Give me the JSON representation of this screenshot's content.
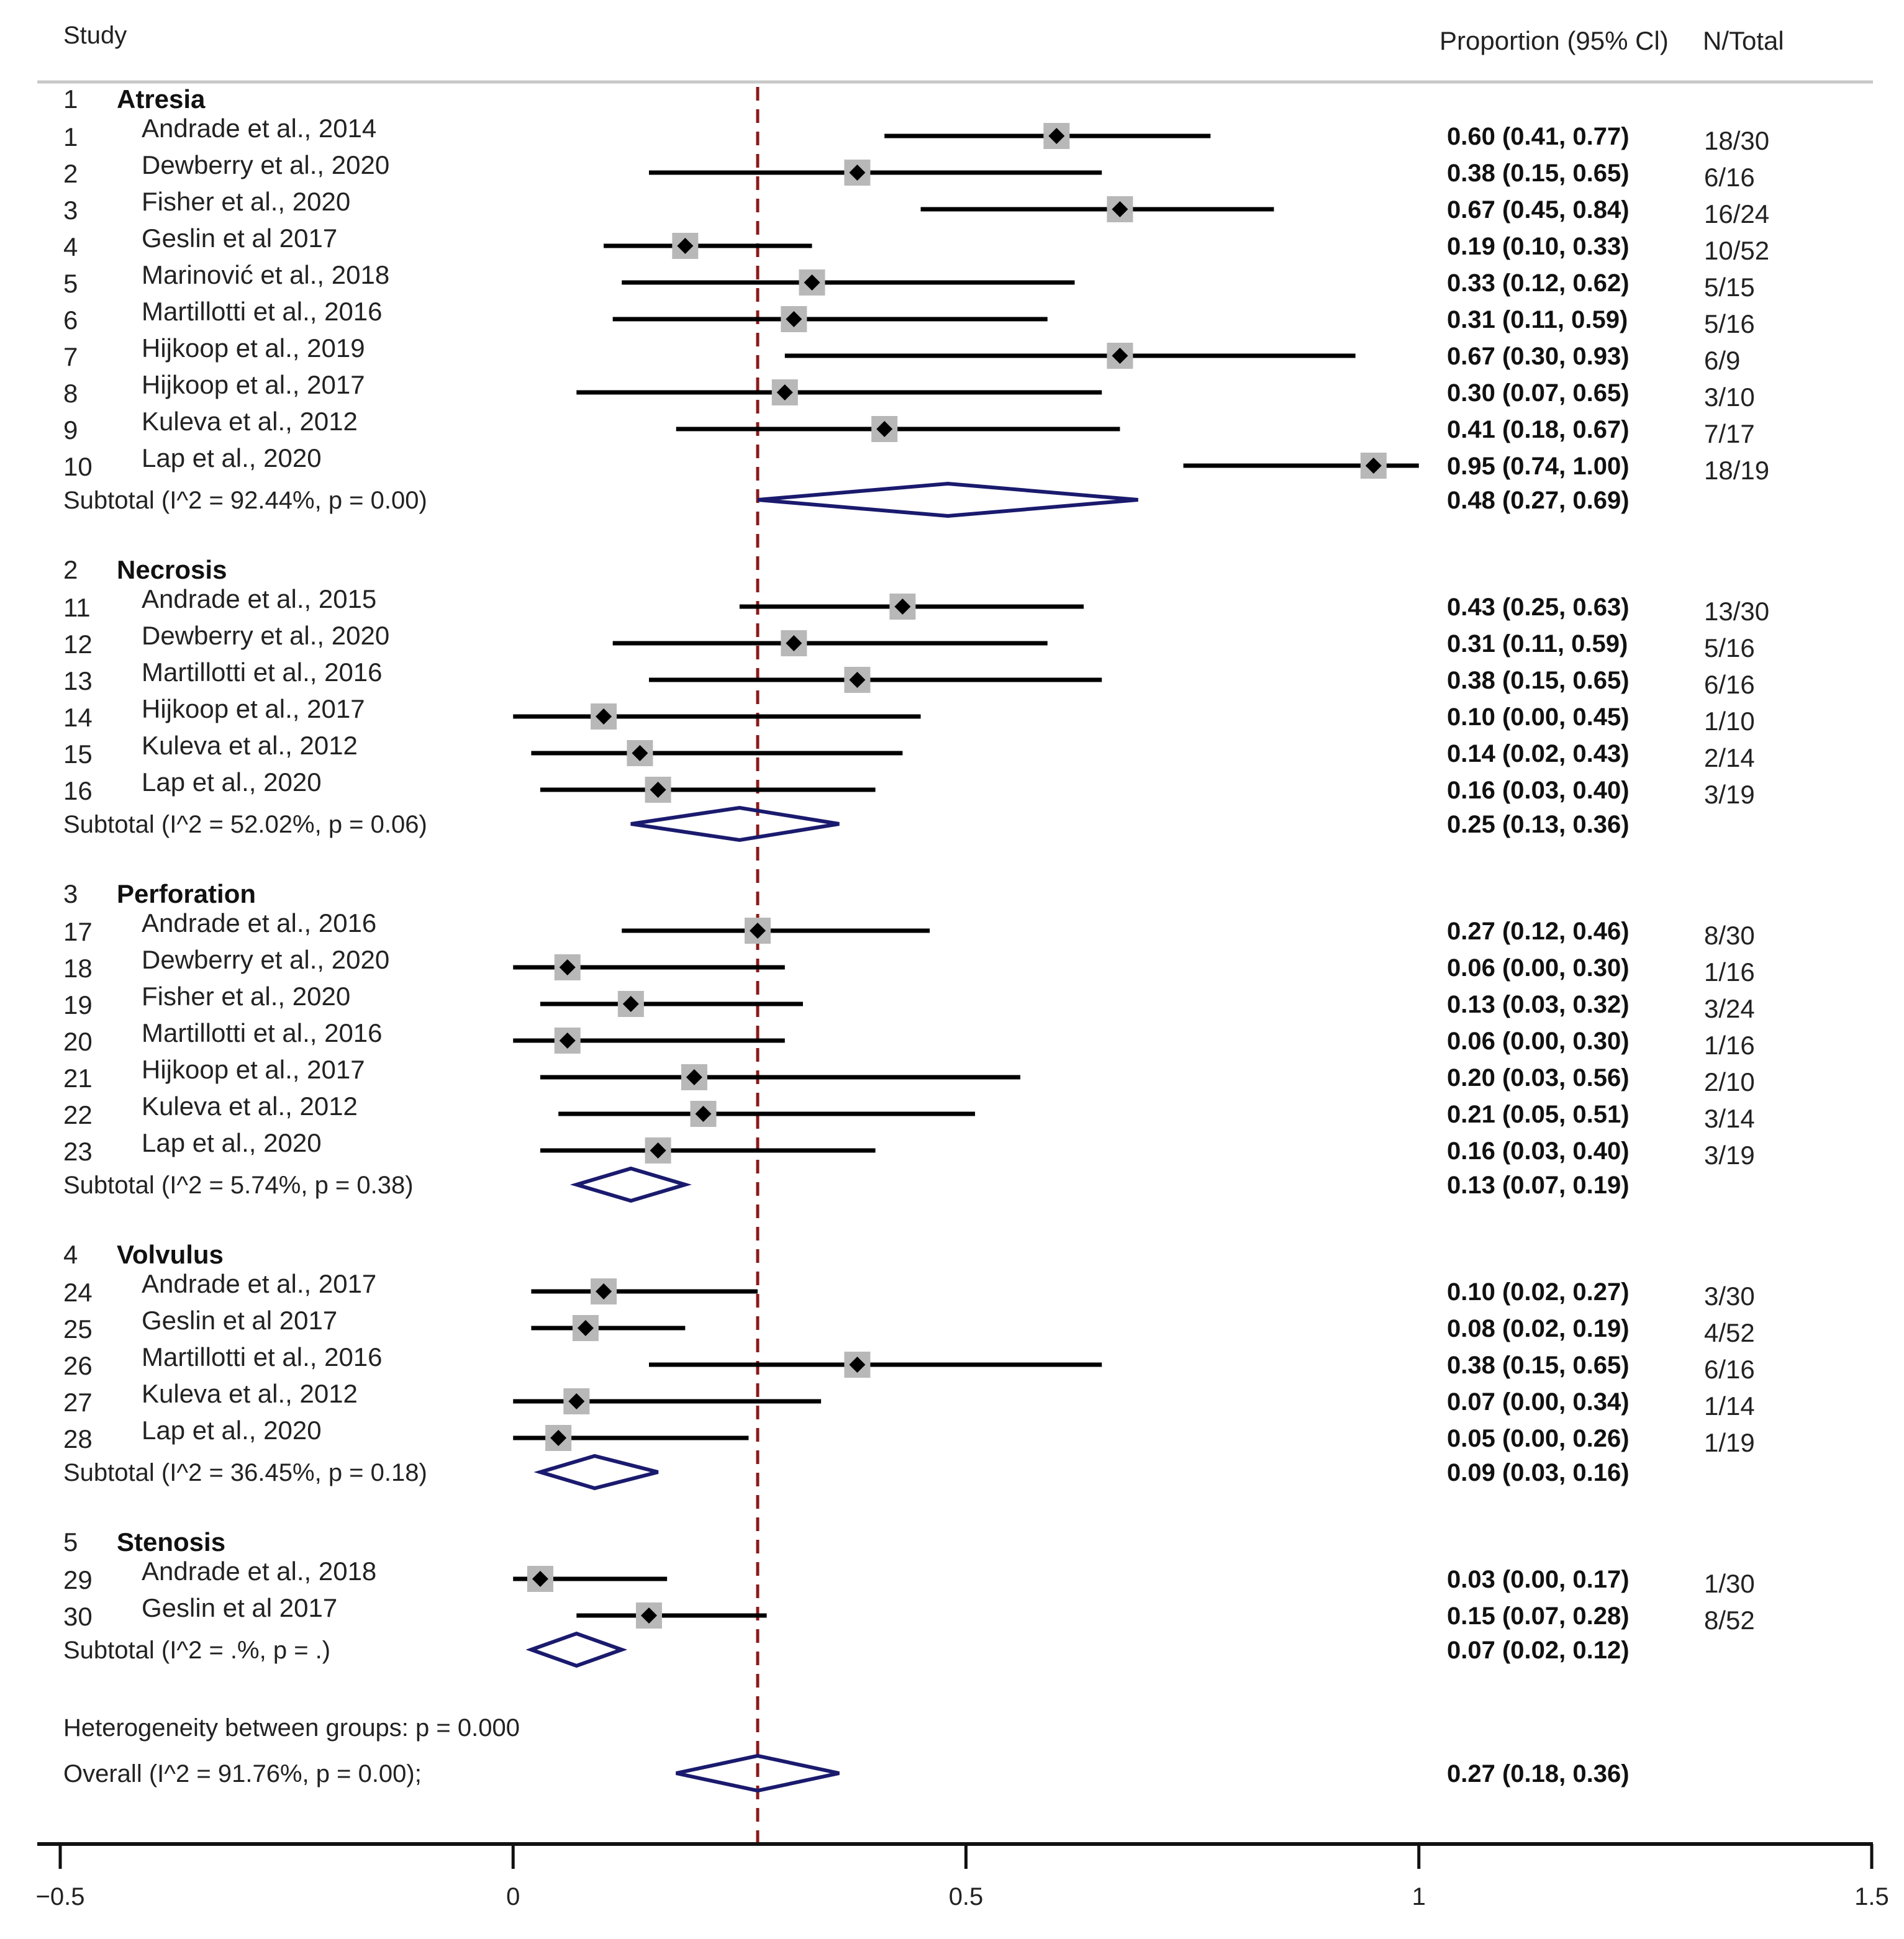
{
  "header": {
    "study": "Study",
    "proportion": "Proportion (95% Cl)",
    "ntotal": "N/Total"
  },
  "colors": {
    "ci_line": "#000000",
    "point": "#000000",
    "box": "#b8b8b8",
    "diamond": "#1a1a6e",
    "ref_line": "#8b1a1a",
    "rule": "#c8c8c8"
  },
  "chart_data": {
    "type": "forest",
    "xlim": [
      -0.5,
      1.5
    ],
    "xticks": [
      -0.5,
      0,
      0.5,
      1,
      1.5
    ],
    "xtick_labels": [
      "−0.5",
      "0",
      "0.5",
      "1",
      "1.5"
    ],
    "reference_line": 0.27,
    "groups": [
      {
        "number": "1",
        "name": "Atresia",
        "studies": [
          {
            "id": "1",
            "label": "Andrade et al., 2014",
            "est": 0.6,
            "lo": 0.41,
            "hi": 0.77,
            "ci_text": "0.60 (0.41, 0.77)",
            "n": "18/30"
          },
          {
            "id": "2",
            "label": "Dewberry et al., 2020",
            "est": 0.38,
            "lo": 0.15,
            "hi": 0.65,
            "ci_text": "0.38 (0.15, 0.65)",
            "n": "6/16"
          },
          {
            "id": "3",
            "label": "Fisher et al., 2020",
            "est": 0.67,
            "lo": 0.45,
            "hi": 0.84,
            "ci_text": "0.67 (0.45, 0.84)",
            "n": "16/24"
          },
          {
            "id": "4",
            "label": "Geslin et al 2017",
            "est": 0.19,
            "lo": 0.1,
            "hi": 0.33,
            "ci_text": "0.19 (0.10, 0.33)",
            "n": "10/52"
          },
          {
            "id": "5",
            "label": "Marinović et al., 2018",
            "est": 0.33,
            "lo": 0.12,
            "hi": 0.62,
            "ci_text": "0.33 (0.12, 0.62)",
            "n": "5/15"
          },
          {
            "id": "6",
            "label": "Martillotti et al., 2016",
            "est": 0.31,
            "lo": 0.11,
            "hi": 0.59,
            "ci_text": "0.31 (0.11, 0.59)",
            "n": "5/16"
          },
          {
            "id": "7",
            "label": "Hijkoop et al., 2019",
            "est": 0.67,
            "lo": 0.3,
            "hi": 0.93,
            "ci_text": "0.67 (0.30, 0.93)",
            "n": "6/9"
          },
          {
            "id": "8",
            "label": "Hijkoop et al., 2017",
            "est": 0.3,
            "lo": 0.07,
            "hi": 0.65,
            "ci_text": "0.30 (0.07, 0.65)",
            "n": "3/10"
          },
          {
            "id": "9",
            "label": "Kuleva et al., 2012",
            "est": 0.41,
            "lo": 0.18,
            "hi": 0.67,
            "ci_text": "0.41 (0.18, 0.67)",
            "n": "7/17"
          },
          {
            "id": "10",
            "label": "Lap et al., 2020",
            "est": 0.95,
            "lo": 0.74,
            "hi": 1.0,
            "ci_text": "0.95 (0.74, 1.00)",
            "n": "18/19"
          }
        ],
        "subtotal": {
          "label": "Subtotal  (I^2 = 92.44%, p = 0.00)",
          "est": 0.48,
          "lo": 0.27,
          "hi": 0.69,
          "ci_text": "0.48 (0.27, 0.69)"
        }
      },
      {
        "number": "2",
        "name": "Necrosis",
        "studies": [
          {
            "id": "11",
            "label": "Andrade et al., 2015",
            "est": 0.43,
            "lo": 0.25,
            "hi": 0.63,
            "ci_text": "0.43 (0.25, 0.63)",
            "n": "13/30"
          },
          {
            "id": "12",
            "label": "Dewberry et al., 2020",
            "est": 0.31,
            "lo": 0.11,
            "hi": 0.59,
            "ci_text": "0.31 (0.11, 0.59)",
            "n": "5/16"
          },
          {
            "id": "13",
            "label": "Martillotti et al., 2016",
            "est": 0.38,
            "lo": 0.15,
            "hi": 0.65,
            "ci_text": "0.38 (0.15, 0.65)",
            "n": "6/16"
          },
          {
            "id": "14",
            "label": "Hijkoop et al., 2017",
            "est": 0.1,
            "lo": 0.0,
            "hi": 0.45,
            "ci_text": "0.10 (0.00, 0.45)",
            "n": "1/10"
          },
          {
            "id": "15",
            "label": "Kuleva et al., 2012",
            "est": 0.14,
            "lo": 0.02,
            "hi": 0.43,
            "ci_text": "0.14 (0.02, 0.43)",
            "n": "2/14"
          },
          {
            "id": "16",
            "label": "Lap et al., 2020",
            "est": 0.16,
            "lo": 0.03,
            "hi": 0.4,
            "ci_text": "0.16 (0.03, 0.40)",
            "n": "3/19"
          }
        ],
        "subtotal": {
          "label": "Subtotal  (I^2 = 52.02%, p = 0.06)",
          "est": 0.25,
          "lo": 0.13,
          "hi": 0.36,
          "ci_text": "0.25 (0.13, 0.36)"
        }
      },
      {
        "number": "3",
        "name": "Perforation",
        "studies": [
          {
            "id": "17",
            "label": "Andrade et al., 2016",
            "est": 0.27,
            "lo": 0.12,
            "hi": 0.46,
            "ci_text": "0.27 (0.12, 0.46)",
            "n": "8/30"
          },
          {
            "id": "18",
            "label": "Dewberry et al., 2020",
            "est": 0.06,
            "lo": 0.0,
            "hi": 0.3,
            "ci_text": "0.06 (0.00, 0.30)",
            "n": "1/16"
          },
          {
            "id": "19",
            "label": "Fisher et al., 2020",
            "est": 0.13,
            "lo": 0.03,
            "hi": 0.32,
            "ci_text": "0.13 (0.03, 0.32)",
            "n": "3/24"
          },
          {
            "id": "20",
            "label": "Martillotti et al., 2016",
            "est": 0.06,
            "lo": 0.0,
            "hi": 0.3,
            "ci_text": "0.06 (0.00, 0.30)",
            "n": "1/16"
          },
          {
            "id": "21",
            "label": "Hijkoop et al., 2017",
            "est": 0.2,
            "lo": 0.03,
            "hi": 0.56,
            "ci_text": "0.20 (0.03, 0.56)",
            "n": "2/10"
          },
          {
            "id": "22",
            "label": "Kuleva et al., 2012",
            "est": 0.21,
            "lo": 0.05,
            "hi": 0.51,
            "ci_text": "0.21 (0.05, 0.51)",
            "n": "3/14"
          },
          {
            "id": "23",
            "label": "Lap et al., 2020",
            "est": 0.16,
            "lo": 0.03,
            "hi": 0.4,
            "ci_text": "0.16 (0.03, 0.40)",
            "n": "3/19"
          }
        ],
        "subtotal": {
          "label": "Subtotal  (I^2 = 5.74%, p = 0.38)",
          "est": 0.13,
          "lo": 0.07,
          "hi": 0.19,
          "ci_text": "0.13 (0.07, 0.19)"
        }
      },
      {
        "number": "4",
        "name": "Volvulus",
        "studies": [
          {
            "id": "24",
            "label": "Andrade et al., 2017",
            "est": 0.1,
            "lo": 0.02,
            "hi": 0.27,
            "ci_text": "0.10 (0.02, 0.27)",
            "n": "3/30"
          },
          {
            "id": "25",
            "label": "Geslin et al 2017",
            "est": 0.08,
            "lo": 0.02,
            "hi": 0.19,
            "ci_text": "0.08 (0.02, 0.19)",
            "n": "4/52"
          },
          {
            "id": "26",
            "label": "Martillotti et al., 2016",
            "est": 0.38,
            "lo": 0.15,
            "hi": 0.65,
            "ci_text": "0.38 (0.15, 0.65)",
            "n": "6/16"
          },
          {
            "id": "27",
            "label": "Kuleva et al., 2012",
            "est": 0.07,
            "lo": 0.0,
            "hi": 0.34,
            "ci_text": "0.07 (0.00, 0.34)",
            "n": "1/14"
          },
          {
            "id": "28",
            "label": "Lap et al., 2020",
            "est": 0.05,
            "lo": 0.0,
            "hi": 0.26,
            "ci_text": "0.05 (0.00, 0.26)",
            "n": "1/19"
          }
        ],
        "subtotal": {
          "label": "Subtotal  (I^2 = 36.45%, p = 0.18)",
          "est": 0.09,
          "lo": 0.03,
          "hi": 0.16,
          "ci_text": "0.09 (0.03, 0.16)"
        }
      },
      {
        "number": "5",
        "name": "Stenosis",
        "studies": [
          {
            "id": "29",
            "label": "Andrade et al., 2018",
            "est": 0.03,
            "lo": 0.0,
            "hi": 0.17,
            "ci_text": "0.03 (0.00, 0.17)",
            "n": "1/30"
          },
          {
            "id": "30",
            "label": "Geslin et al 2017",
            "est": 0.15,
            "lo": 0.07,
            "hi": 0.28,
            "ci_text": "0.15 (0.07, 0.28)",
            "n": "8/52"
          }
        ],
        "subtotal": {
          "label": "Subtotal  (I^2 = .%, p = .)",
          "est": 0.07,
          "lo": 0.02,
          "hi": 0.12,
          "ci_text": "0.07 (0.02, 0.12)"
        }
      }
    ],
    "heterogeneity": "Heterogeneity between groups: p = 0.000",
    "overall": {
      "label": "Overall  (I^2 = 91.76%, p = 0.00);",
      "est": 0.27,
      "lo": 0.18,
      "hi": 0.36,
      "ci_text": "0.27 (0.18, 0.36)"
    }
  }
}
